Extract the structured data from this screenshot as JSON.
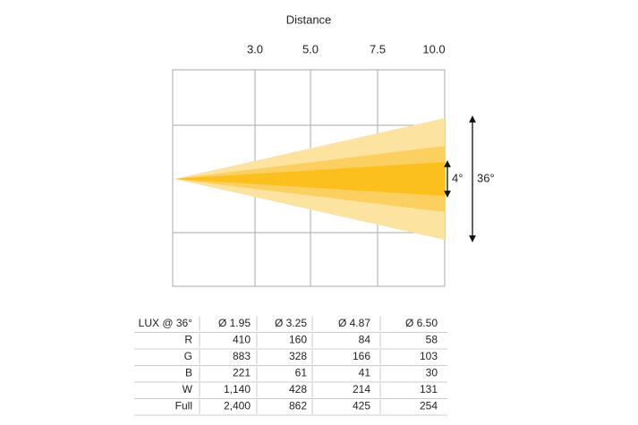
{
  "diagram": {
    "title": "Distance",
    "distances": [
      "3.0",
      "5.0",
      "7.5",
      "10.0"
    ],
    "angles": [
      "4°",
      "36°"
    ]
  },
  "table": {
    "header": [
      "LUX @ 36°",
      "Ø 1.95",
      "Ø 3.25",
      "Ø 4.87",
      "Ø 6.50"
    ],
    "rows": [
      [
        "R",
        "410",
        "160",
        "84",
        "58"
      ],
      [
        "G",
        "883",
        "328",
        "166",
        "103"
      ],
      [
        "B",
        "221",
        "61",
        "41",
        "30"
      ],
      [
        "W",
        "1,140",
        "428",
        "214",
        "131"
      ],
      [
        "Full",
        "2,400",
        "862",
        "425",
        "254"
      ]
    ]
  }
}
